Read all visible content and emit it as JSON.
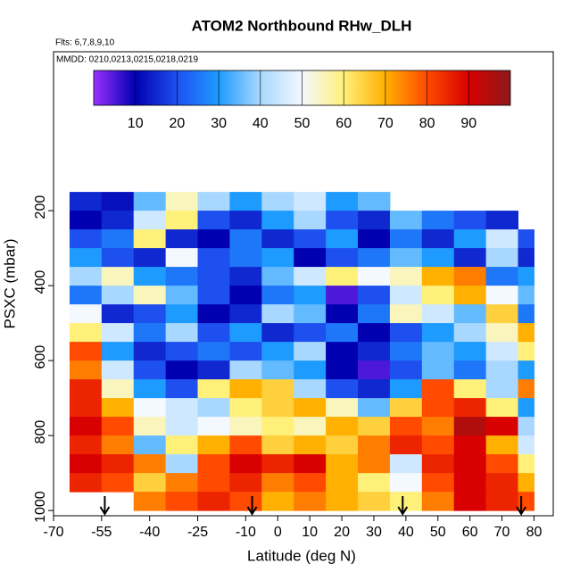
{
  "chart_data": {
    "type": "heatmap",
    "title": "ATOM2 Northbound RHw_DLH",
    "subtitle": "Flts: 6,7,8,9,10",
    "annotation": "MMDD: 0210,0213,0215,0218,0219",
    "xlabel": "Latitude (deg N)",
    "ylabel": "PSXC (mbar)",
    "xlim": [
      -70,
      86
    ],
    "xticks": [
      -70,
      -55,
      -40,
      -25,
      -10,
      0,
      10,
      20,
      30,
      40,
      50,
      60,
      70,
      80
    ],
    "ylim": [
      1014,
      -224
    ],
    "yticks": [
      200,
      400,
      600,
      800,
      1000
    ],
    "zlim": [
      0,
      100
    ],
    "zticks": [
      10,
      20,
      30,
      40,
      50,
      60,
      70,
      80,
      90
    ],
    "colorscale": [
      [
        0,
        "#9b30ff"
      ],
      [
        10,
        "#0000b0"
      ],
      [
        20,
        "#1e50f0"
      ],
      [
        30,
        "#1e9bff"
      ],
      [
        40,
        "#a8d8ff"
      ],
      [
        50,
        "#f4f8ff"
      ],
      [
        60,
        "#fff07a"
      ],
      [
        70,
        "#ffb000"
      ],
      [
        80,
        "#ff4a00"
      ],
      [
        90,
        "#d80000"
      ],
      [
        100,
        "#8b1a1a"
      ]
    ],
    "x_bins": [
      -65,
      -55,
      -45,
      -35,
      -25,
      -15,
      -5,
      5,
      15,
      25,
      35,
      45,
      55,
      65,
      75,
      80
    ],
    "y_bins": [
      150,
      200,
      250,
      300,
      350,
      400,
      450,
      500,
      550,
      600,
      650,
      700,
      750,
      800,
      850,
      900,
      950,
      1000
    ],
    "values": [
      [
        15,
        12,
        35,
        55,
        40,
        30,
        40,
        45,
        30,
        35,
        null,
        null,
        null,
        null,
        null
      ],
      [
        10,
        15,
        45,
        60,
        20,
        15,
        30,
        40,
        20,
        15,
        35,
        25,
        20,
        15,
        null
      ],
      [
        20,
        25,
        60,
        15,
        10,
        25,
        15,
        20,
        30,
        10,
        25,
        15,
        30,
        45,
        20
      ],
      [
        30,
        20,
        15,
        50,
        20,
        25,
        30,
        10,
        20,
        25,
        35,
        30,
        15,
        40,
        15
      ],
      [
        40,
        55,
        30,
        25,
        20,
        15,
        35,
        45,
        60,
        50,
        55,
        70,
        75,
        25,
        30
      ],
      [
        25,
        40,
        55,
        35,
        20,
        10,
        25,
        30,
        5,
        20,
        45,
        60,
        70,
        50,
        35
      ],
      [
        50,
        15,
        20,
        30,
        10,
        15,
        40,
        35,
        10,
        25,
        55,
        45,
        35,
        65,
        25
      ],
      [
        60,
        45,
        25,
        40,
        20,
        30,
        15,
        20,
        25,
        10,
        20,
        30,
        40,
        55,
        70
      ],
      [
        80,
        30,
        15,
        20,
        25,
        20,
        30,
        40,
        10,
        15,
        25,
        35,
        30,
        45,
        60
      ],
      [
        75,
        45,
        20,
        10,
        15,
        40,
        35,
        30,
        10,
        5,
        20,
        35,
        25,
        40,
        30
      ],
      [
        85,
        55,
        30,
        20,
        60,
        70,
        65,
        40,
        20,
        15,
        30,
        80,
        60,
        40,
        75
      ],
      [
        85,
        70,
        50,
        45,
        40,
        60,
        65,
        70,
        55,
        35,
        65,
        80,
        85,
        60,
        30
      ],
      [
        90,
        80,
        55,
        45,
        50,
        55,
        60,
        55,
        70,
        65,
        80,
        75,
        95,
        90,
        40
      ],
      [
        85,
        75,
        35,
        60,
        70,
        80,
        65,
        70,
        65,
        75,
        85,
        80,
        90,
        70,
        45
      ],
      [
        90,
        85,
        75,
        40,
        80,
        90,
        85,
        90,
        70,
        75,
        45,
        85,
        90,
        80,
        60
      ],
      [
        85,
        80,
        65,
        75,
        80,
        85,
        75,
        80,
        70,
        60,
        50,
        80,
        90,
        85,
        70
      ],
      [
        null,
        null,
        75,
        80,
        85,
        80,
        70,
        75,
        70,
        65,
        60,
        75,
        90,
        85,
        80
      ]
    ],
    "arrows": [
      -54,
      -8,
      39,
      76
    ]
  }
}
